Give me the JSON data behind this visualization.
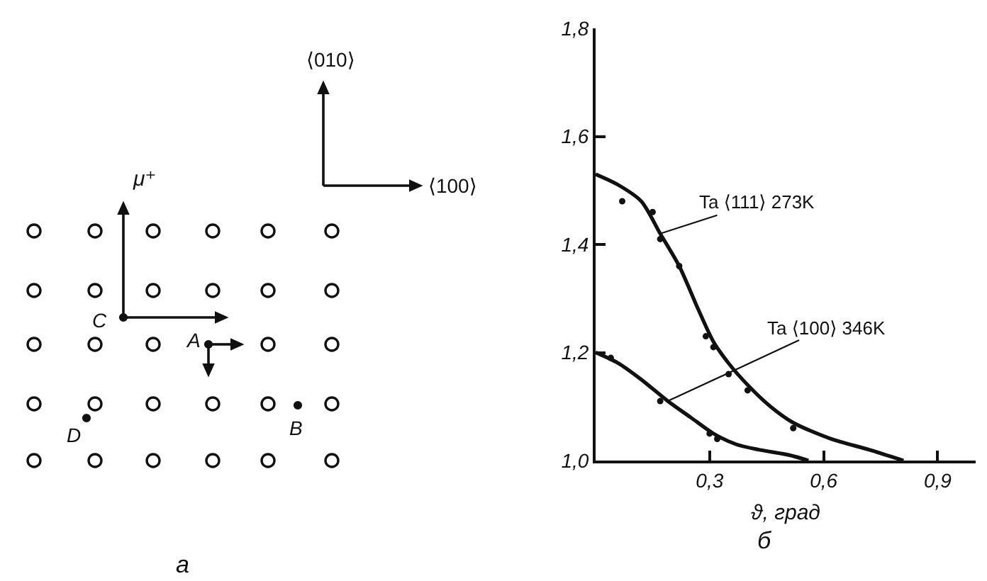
{
  "chart_data": [
    {
      "type": "other",
      "annotations": [
        "⟨010⟩",
        "⟨100⟩",
        "μ⁺",
        "C",
        "A",
        "D",
        "B",
        "а"
      ]
    },
    {
      "type": "line",
      "xlabel": "ϑ, град",
      "xlim": [
        0,
        1.0
      ],
      "ylim": [
        1.0,
        1.8
      ],
      "xticks": [
        {
          "value": 0.3,
          "label": "0,3"
        },
        {
          "value": 0.6,
          "label": "0,6"
        },
        {
          "value": 0.9,
          "label": "0,9"
        }
      ],
      "yticks": [
        {
          "value": 1.0,
          "label": "1,0"
        },
        {
          "value": 1.2,
          "label": "1,2"
        },
        {
          "value": 1.4,
          "label": "1,4"
        },
        {
          "value": 1.6,
          "label": "1,6"
        },
        {
          "value": 1.8,
          "label": "1,8"
        }
      ],
      "series": [
        {
          "name": "Ta ⟨111⟩ 273K",
          "color": "#111111",
          "x": [
            0,
            0.06,
            0.12,
            0.17,
            0.22,
            0.27,
            0.31,
            0.35,
            0.4,
            0.46,
            0.52,
            0.62,
            0.72,
            0.81
          ],
          "values": [
            1.53,
            1.51,
            1.48,
            1.42,
            1.36,
            1.28,
            1.22,
            1.18,
            1.14,
            1.1,
            1.07,
            1.04,
            1.02,
            1.0
          ]
        },
        {
          "type": "scatter",
          "marker": "circle",
          "color": "#111111",
          "x": [
            0.07,
            0.15,
            0.17,
            0.22,
            0.29,
            0.31,
            0.35,
            0.4,
            0.52
          ],
          "values": [
            1.48,
            1.46,
            1.41,
            1.36,
            1.23,
            1.21,
            1.16,
            1.13,
            1.06
          ]
        },
        {
          "name": "Ta ⟨100⟩ 346K",
          "color": "#111111",
          "x": [
            0,
            0.06,
            0.12,
            0.19,
            0.25,
            0.31,
            0.37,
            0.43,
            0.51,
            0.56
          ],
          "values": [
            1.2,
            1.18,
            1.15,
            1.11,
            1.08,
            1.05,
            1.03,
            1.02,
            1.01,
            1.0
          ]
        },
        {
          "type": "scatter",
          "marker": "circle",
          "color": "#111111",
          "x": [
            0.04,
            0.17,
            0.3,
            0.32
          ],
          "values": [
            1.19,
            1.11,
            1.05,
            1.04
          ]
        }
      ],
      "annotations": [
        "б"
      ],
      "grid": false,
      "legend": false,
      "line_style": "solid"
    }
  ]
}
